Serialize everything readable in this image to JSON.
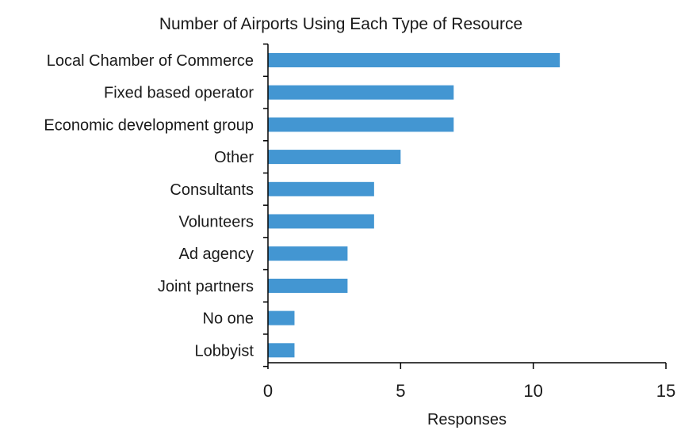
{
  "chart_data": {
    "type": "bar",
    "orientation": "horizontal",
    "title": "Number of Airports Using Each Type of Resource",
    "xlabel": "Responses",
    "ylabel": "",
    "categories": [
      "Local Chamber of Commerce",
      "Fixed based operator",
      "Economic development group",
      "Other",
      "Consultants",
      "Volunteers",
      "Ad agency",
      "Joint partners",
      "No one",
      "Lobbyist"
    ],
    "values": [
      11,
      7,
      7,
      5,
      4,
      4,
      3,
      3,
      1,
      1
    ],
    "xlim": [
      0,
      15
    ],
    "xticks": [
      0,
      5,
      10,
      15
    ],
    "xtick_labels": [
      "0",
      "5",
      "10",
      "15"
    ],
    "grid": false,
    "legend": "none",
    "bar_color": "#4396d2"
  }
}
